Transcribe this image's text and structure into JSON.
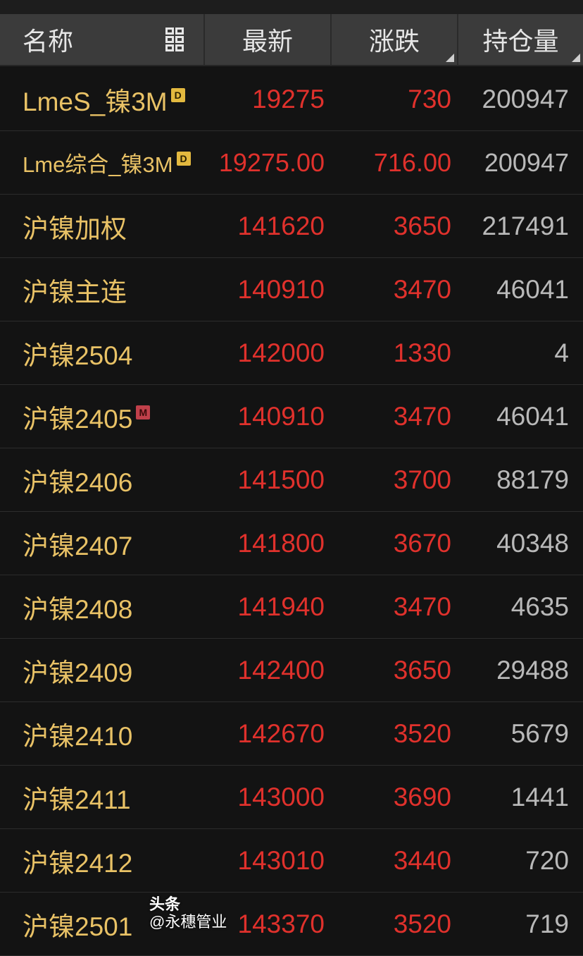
{
  "header": {
    "name": "名称",
    "latest": "最新",
    "change": "涨跌",
    "open_interest": "持仓量",
    "layout_icon": "grid-layout-icon"
  },
  "rows": [
    {
      "name": "LmeS_镍3M",
      "badge": "D",
      "latest": "19275",
      "change": "730",
      "open_interest": "200947"
    },
    {
      "name": "Lme综合_镍3M",
      "badge": "D",
      "latest": "19275.00",
      "change": "716.00",
      "open_interest": "200947"
    },
    {
      "name": "沪镍加权",
      "badge": "",
      "latest": "141620",
      "change": "3650",
      "open_interest": "217491"
    },
    {
      "name": "沪镍主连",
      "badge": "",
      "latest": "140910",
      "change": "3470",
      "open_interest": "46041"
    },
    {
      "name": "沪镍2504",
      "badge": "",
      "latest": "142000",
      "change": "1330",
      "open_interest": "4"
    },
    {
      "name": "沪镍2405",
      "badge": "M",
      "latest": "140910",
      "change": "3470",
      "open_interest": "46041"
    },
    {
      "name": "沪镍2406",
      "badge": "",
      "latest": "141500",
      "change": "3700",
      "open_interest": "88179"
    },
    {
      "name": "沪镍2407",
      "badge": "",
      "latest": "141800",
      "change": "3670",
      "open_interest": "40348"
    },
    {
      "name": "沪镍2408",
      "badge": "",
      "latest": "141940",
      "change": "3470",
      "open_interest": "4635"
    },
    {
      "name": "沪镍2409",
      "badge": "",
      "latest": "142400",
      "change": "3650",
      "open_interest": "29488"
    },
    {
      "name": "沪镍2410",
      "badge": "",
      "latest": "142670",
      "change": "3520",
      "open_interest": "5679"
    },
    {
      "name": "沪镍2411",
      "badge": "",
      "latest": "143000",
      "change": "3690",
      "open_interest": "1441"
    },
    {
      "name": "沪镍2412",
      "badge": "",
      "latest": "143010",
      "change": "3440",
      "open_interest": "720"
    },
    {
      "name": "沪镍2501",
      "badge": "",
      "latest": "143370",
      "change": "3520",
      "open_interest": "719"
    }
  ],
  "watermark": {
    "source": "头条",
    "account": "@永穗管业"
  },
  "colors": {
    "name": "#e9c266",
    "up": "#e0312c",
    "neutral": "#b9b9b9",
    "background": "#131313",
    "header": "#3b3b3b"
  }
}
